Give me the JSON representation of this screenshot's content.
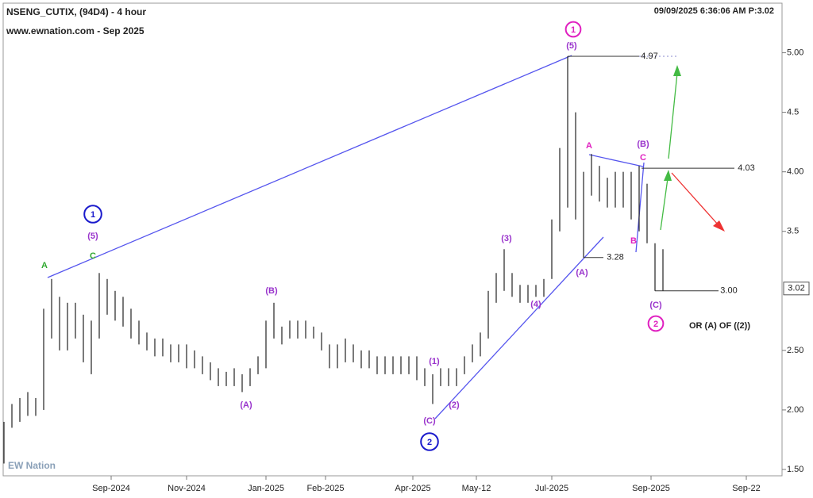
{
  "chart_data": {
    "type": "hilo",
    "title": "NSENG_CUTIX, (94D4) - 4 hour",
    "subtitle": "www.ewnation.com  - Sep 2025",
    "timestamp": "09/09/2025 6:36:06 AM  P:3.02",
    "logo": "EW Nation",
    "color": "#222222",
    "x": [
      0,
      2,
      4,
      6,
      8,
      10,
      12,
      14,
      16,
      18,
      20,
      22,
      24,
      26,
      28,
      30,
      32,
      34,
      36,
      38,
      40,
      42,
      44,
      46,
      48,
      50,
      52,
      54,
      56,
      58,
      60,
      62,
      64,
      66,
      68,
      70,
      72,
      74,
      76,
      78,
      80,
      82,
      84,
      86,
      88,
      90,
      92,
      94,
      96,
      98,
      100,
      102,
      104,
      106,
      108,
      110,
      112,
      114,
      116,
      118,
      120,
      122,
      124,
      126,
      128,
      130,
      132,
      134,
      136,
      138,
      140,
      142,
      144,
      146,
      148,
      150,
      152,
      154,
      156,
      158,
      160,
      162,
      164,
      166
    ],
    "low": [
      1.55,
      1.85,
      1.9,
      1.95,
      1.95,
      2.0,
      2.6,
      2.5,
      2.5,
      2.6,
      2.4,
      2.3,
      2.6,
      2.8,
      2.75,
      2.7,
      2.6,
      2.55,
      2.5,
      2.45,
      2.45,
      2.4,
      2.4,
      2.35,
      2.35,
      2.3,
      2.25,
      2.2,
      2.2,
      2.2,
      2.15,
      2.2,
      2.3,
      2.35,
      2.6,
      2.55,
      2.6,
      2.6,
      2.6,
      2.6,
      2.5,
      2.35,
      2.35,
      2.4,
      2.4,
      2.35,
      2.35,
      2.3,
      2.3,
      2.3,
      2.3,
      2.3,
      2.25,
      2.2,
      2.05,
      2.2,
      2.2,
      2.2,
      2.3,
      2.4,
      2.45,
      2.6,
      2.9,
      3.0,
      2.95,
      2.9,
      2.9,
      2.95,
      2.95,
      3.1,
      3.5,
      3.7,
      3.6,
      3.28,
      3.8,
      3.75,
      3.7,
      3.7,
      3.7,
      3.6,
      3.5,
      3.4,
      3.0,
      3.0
    ],
    "high": [
      1.9,
      2.05,
      2.1,
      2.15,
      2.1,
      2.85,
      3.1,
      2.95,
      2.9,
      2.9,
      2.8,
      2.75,
      3.15,
      3.1,
      3.0,
      2.95,
      2.85,
      2.75,
      2.65,
      2.6,
      2.6,
      2.55,
      2.55,
      2.55,
      2.5,
      2.45,
      2.4,
      2.35,
      2.32,
      2.35,
      2.3,
      2.35,
      2.45,
      2.75,
      2.9,
      2.7,
      2.75,
      2.75,
      2.75,
      2.7,
      2.65,
      2.55,
      2.55,
      2.6,
      2.55,
      2.5,
      2.5,
      2.45,
      2.45,
      2.45,
      2.45,
      2.45,
      2.45,
      2.35,
      2.3,
      2.35,
      2.35,
      2.35,
      2.45,
      2.55,
      2.65,
      3.0,
      3.15,
      3.35,
      3.15,
      3.05,
      3.05,
      3.05,
      3.1,
      3.6,
      4.2,
      4.97,
      4.5,
      4.0,
      4.15,
      4.05,
      3.95,
      4.0,
      4.0,
      4.0,
      4.05,
      3.9,
      3.4,
      3.35
    ],
    "xlim": [
      0,
      196
    ],
    "xticks": [
      {
        "value": 27,
        "label": "Sep-2024"
      },
      {
        "value": 46,
        "label": "Nov-2024"
      },
      {
        "value": 66,
        "label": "Jan-2025"
      },
      {
        "value": 81,
        "label": "Feb-2025"
      },
      {
        "value": 103,
        "label": "Apr-2025"
      },
      {
        "value": 119,
        "label": "May-12"
      },
      {
        "value": 138,
        "label": "Jul-2025"
      },
      {
        "value": 163,
        "label": "Sep-2025"
      },
      {
        "value": 187,
        "label": "Sep-22"
      }
    ],
    "ylim": [
      1.46,
      5.41
    ],
    "yticks": [
      {
        "value": 1.5,
        "label": "1.50"
      },
      {
        "value": 2,
        "label": "2.00"
      },
      {
        "value": 2.5,
        "label": "2.50"
      },
      3.5,
      {
        "value": 4,
        "label": "4.00"
      },
      4.5,
      {
        "value": 5,
        "label": "5.00"
      }
    ],
    "last_price": 3.02,
    "levels": [
      4.97,
      4.03,
      3.28,
      {
        "value": 3,
        "label": "3.00"
      }
    ],
    "annotations": [
      {
        "text": "A",
        "color": "#33aa33",
        "circled": false
      },
      {
        "text": "C",
        "color": "#33aa33",
        "circled": false
      },
      {
        "text": "1",
        "color": "#1a1acc",
        "circled": true
      },
      {
        "text": "(5)",
        "color": "#9933cc",
        "circled": false
      },
      {
        "text": "(B)",
        "color": "#9933cc",
        "circled": false
      },
      {
        "text": "(A)",
        "color": "#9933cc",
        "circled": false
      },
      {
        "text": "(1)",
        "color": "#9933cc",
        "circled": false
      },
      {
        "text": "(2)",
        "color": "#9933cc",
        "circled": false
      },
      {
        "text": "(C)",
        "color": "#9933cc",
        "circled": false
      },
      {
        "text": "2",
        "color": "#1a1acc",
        "circled": true
      },
      {
        "text": "(3)",
        "color": "#9933cc",
        "circled": false
      },
      {
        "text": "(4)",
        "color": "#9933cc",
        "circled": false
      },
      {
        "text": "1",
        "color": "#e020c0",
        "circled": true
      },
      {
        "text": "(5)",
        "color": "#9933cc",
        "circled": false
      },
      {
        "text": "A",
        "color": "#e020c0",
        "circled": false
      },
      {
        "text": "C",
        "color": "#e020c0",
        "circled": false
      },
      {
        "text": "(B)",
        "color": "#9933cc",
        "circled": false
      },
      {
        "text": "B",
        "color": "#e020c0",
        "circled": false
      },
      {
        "text": "(A)",
        "color": "#9933cc",
        "circled": false
      },
      {
        "text": "(C)",
        "color": "#9933cc",
        "circled": false
      },
      {
        "text": "2",
        "color": "#e020c0",
        "circled": true
      },
      {
        "text": "OR (A) OF ((2))",
        "color": "#222222",
        "circled": false
      }
    ]
  }
}
